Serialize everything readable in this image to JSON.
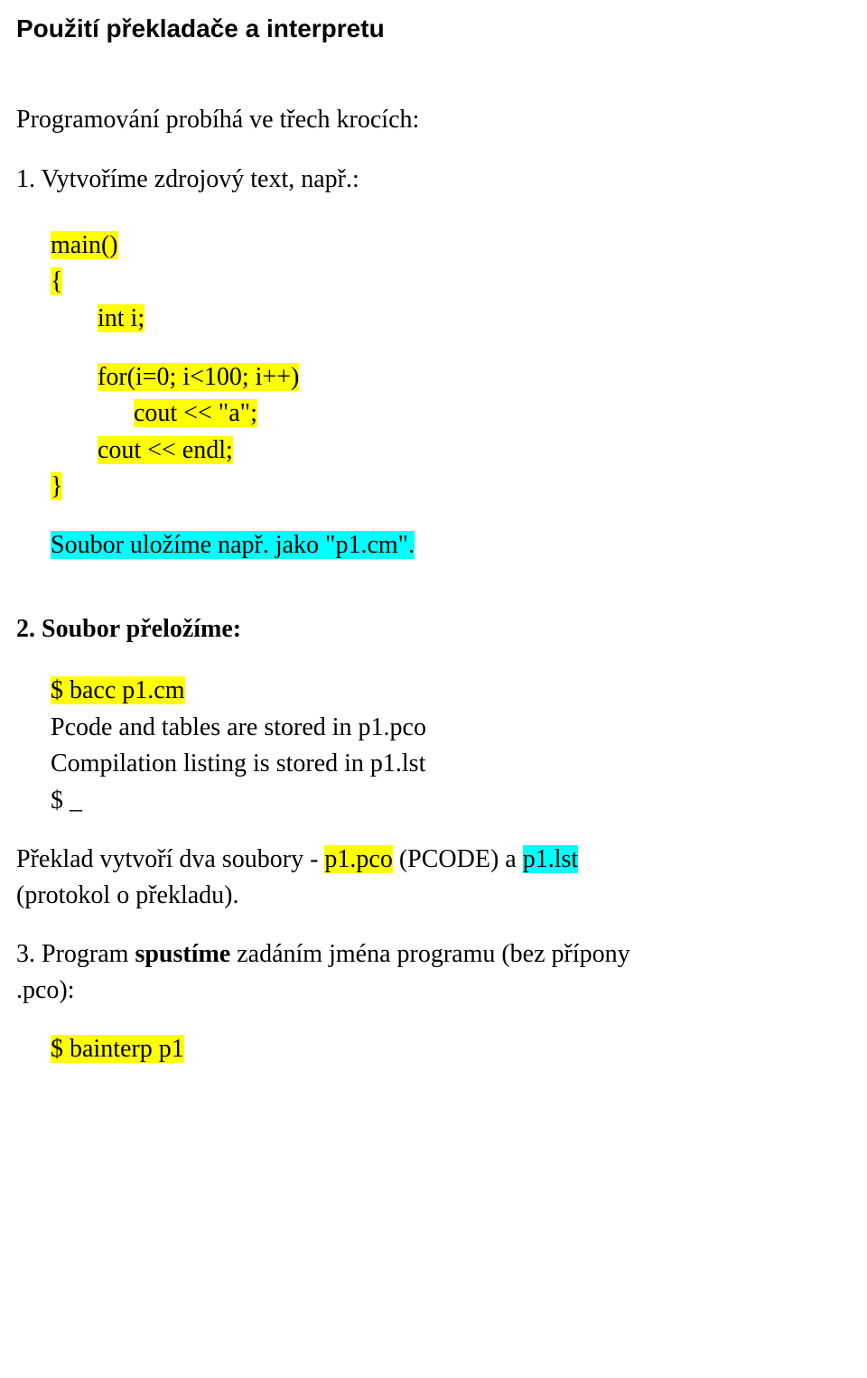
{
  "colors": {
    "highlight_yellow": "#ffff00",
    "highlight_cyan": "#00ffff",
    "text": "#000000",
    "background": "#ffffff"
  },
  "typography": {
    "heading_font": "Arial",
    "heading_weight": "bold",
    "heading_size_pt": 21,
    "body_font": "Times New Roman",
    "body_size_pt": 21
  },
  "heading": "Použití překladače a interpretu",
  "intro": "Programování probíhá ve třech krocích:",
  "step1": {
    "title": "1. Vytvoříme zdrojový text, např.:",
    "code": {
      "l1": "main()",
      "l2": "{",
      "l3": "int i;",
      "l4": "for(i=0; i<100; i++)",
      "l5": "cout << \"a\";",
      "l6": "cout << endl;",
      "l7": "}"
    },
    "save_note": "Soubor uložíme např. jako \"p1.cm\"."
  },
  "step2": {
    "title": "2. Soubor přeložíme:",
    "cmd": "$ bacc p1.cm",
    "out1": "Pcode and tables are stored in p1.pco",
    "out2": "Compilation listing is stored in p1.lst",
    "prompt": "$ _",
    "result_prefix": " Překlad vytvoří dva soubory - ",
    "file1": "p1.pco",
    "middle": " (PCODE) a ",
    "file2": "p1.lst",
    "result_suffix": "(protokol o překladu)."
  },
  "step3": {
    "title_prefix": "3. Program ",
    "title_bold": "spustíme",
    "title_suffix_a": " zadáním jména programu (bez přípony",
    "title_suffix_b": ".pco):",
    "cmd": "$ bainterp p1"
  }
}
